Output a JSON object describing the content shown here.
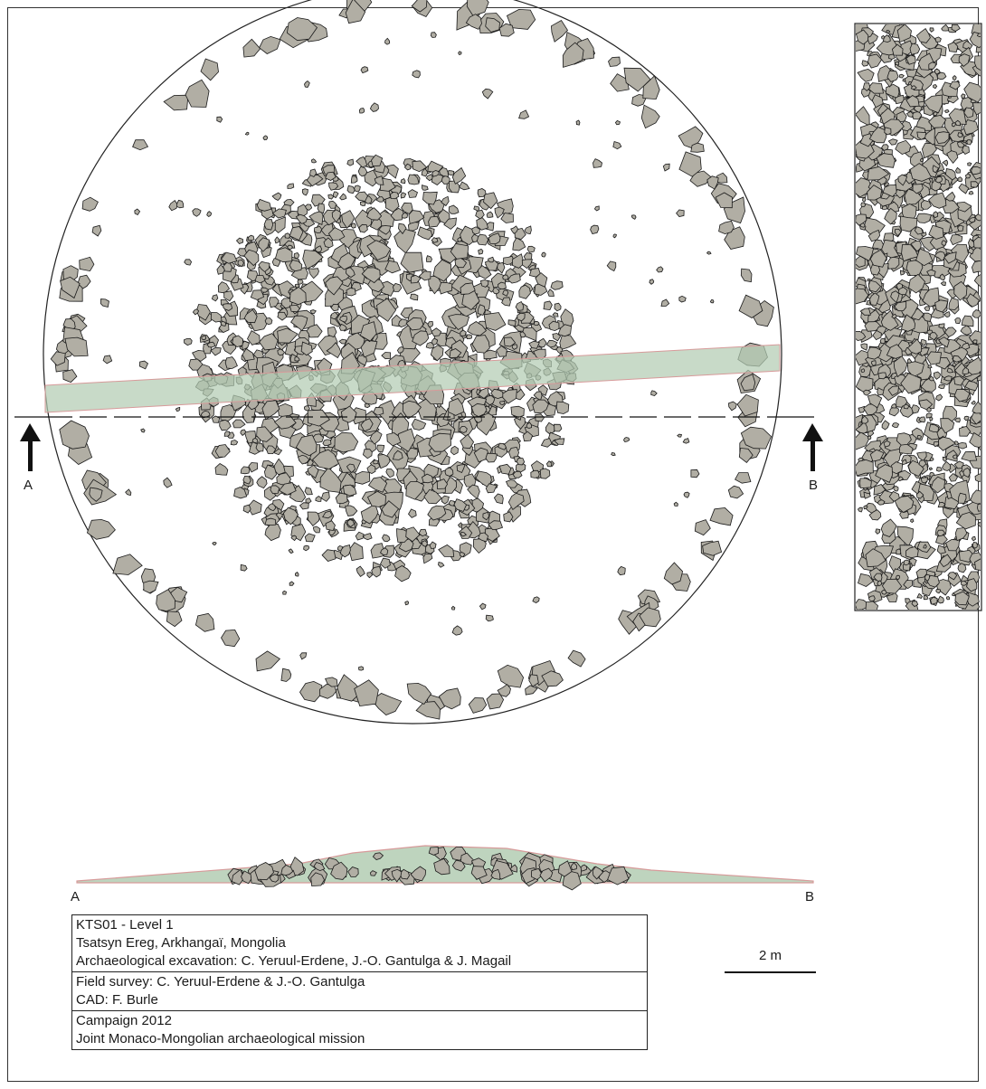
{
  "plan": {
    "section_start": "A",
    "section_end": "B"
  },
  "profile": {
    "start_label": "A",
    "end_label": "B"
  },
  "cartouche": {
    "site_lines": [
      "KTS01 - Level 1",
      "Tsatsyn Ereg, Arkhangaï, Mongolia",
      "Archaeological excavation: C. Yeruul-Erdene, J.-O. Gantulga & J. Magail"
    ],
    "survey_lines": [
      "Field survey: C. Yeruul-Erdene & J.-O. Gantulga",
      "CAD: F. Burle"
    ],
    "campaign_lines": [
      "Campaign 2012",
      "Joint Monaco-Mongolian archaeological mission"
    ]
  },
  "scale": {
    "label": "2 m"
  },
  "colors": {
    "stone_fill": "#b1aea4",
    "stone_stroke": "#1a1a1a",
    "trench_fill": "#b3ccb3",
    "trench_edge": "#d79a9a",
    "outline": "#222222"
  }
}
